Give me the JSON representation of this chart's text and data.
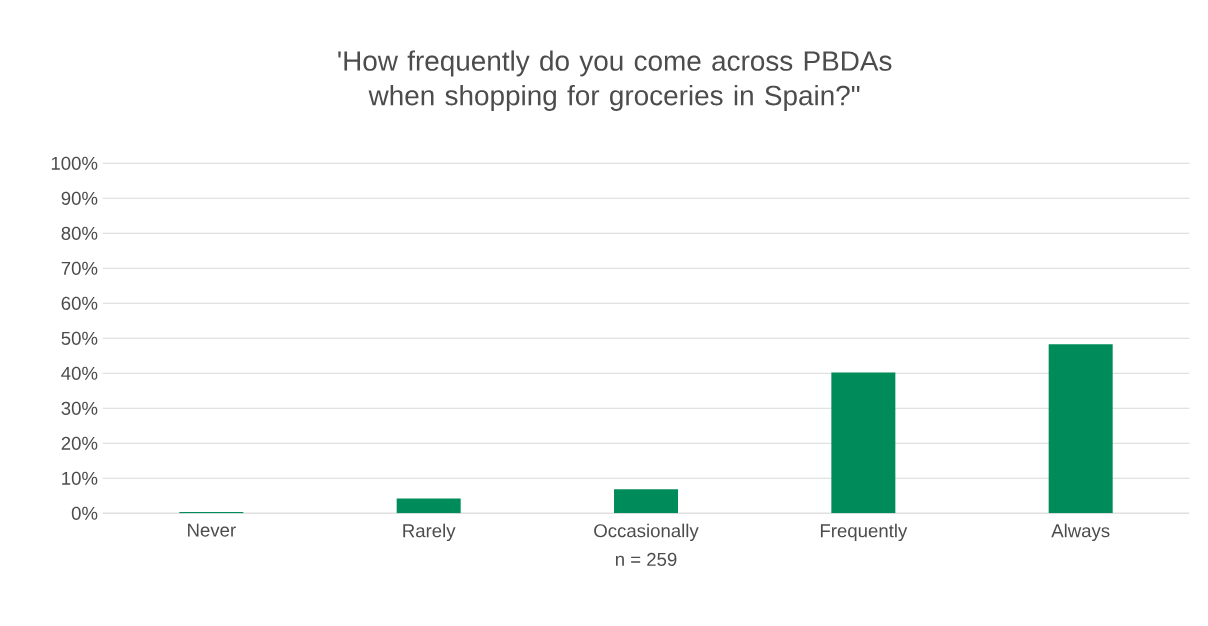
{
  "chart_data": {
    "type": "bar",
    "title": "'How frequently do you come across PBDAs when shopping for groceries in Spain?\"",
    "xlabel": "n = 259",
    "categories": [
      "Never",
      "Rarely",
      "Occasionally",
      "Frequently",
      "Always"
    ],
    "values": [
      0.4,
      4.2,
      6.9,
      40.2,
      48.3
    ],
    "color": "#008c5a",
    "ylim": [
      0,
      100
    ],
    "yticks": [
      {
        "value": 0,
        "label": "0%"
      },
      {
        "value": 10,
        "label": "10%"
      },
      {
        "value": 20,
        "label": "20%"
      },
      {
        "value": 30,
        "label": "30%"
      },
      {
        "value": 40,
        "label": "40%"
      },
      {
        "value": 50,
        "label": "50%"
      },
      {
        "value": 60,
        "label": "60%"
      },
      {
        "value": 70,
        "label": "70%"
      },
      {
        "value": 80,
        "label": "80%"
      },
      {
        "value": 90,
        "label": "90%"
      },
      {
        "value": 100,
        "label": "100%"
      }
    ],
    "grid": "y"
  }
}
